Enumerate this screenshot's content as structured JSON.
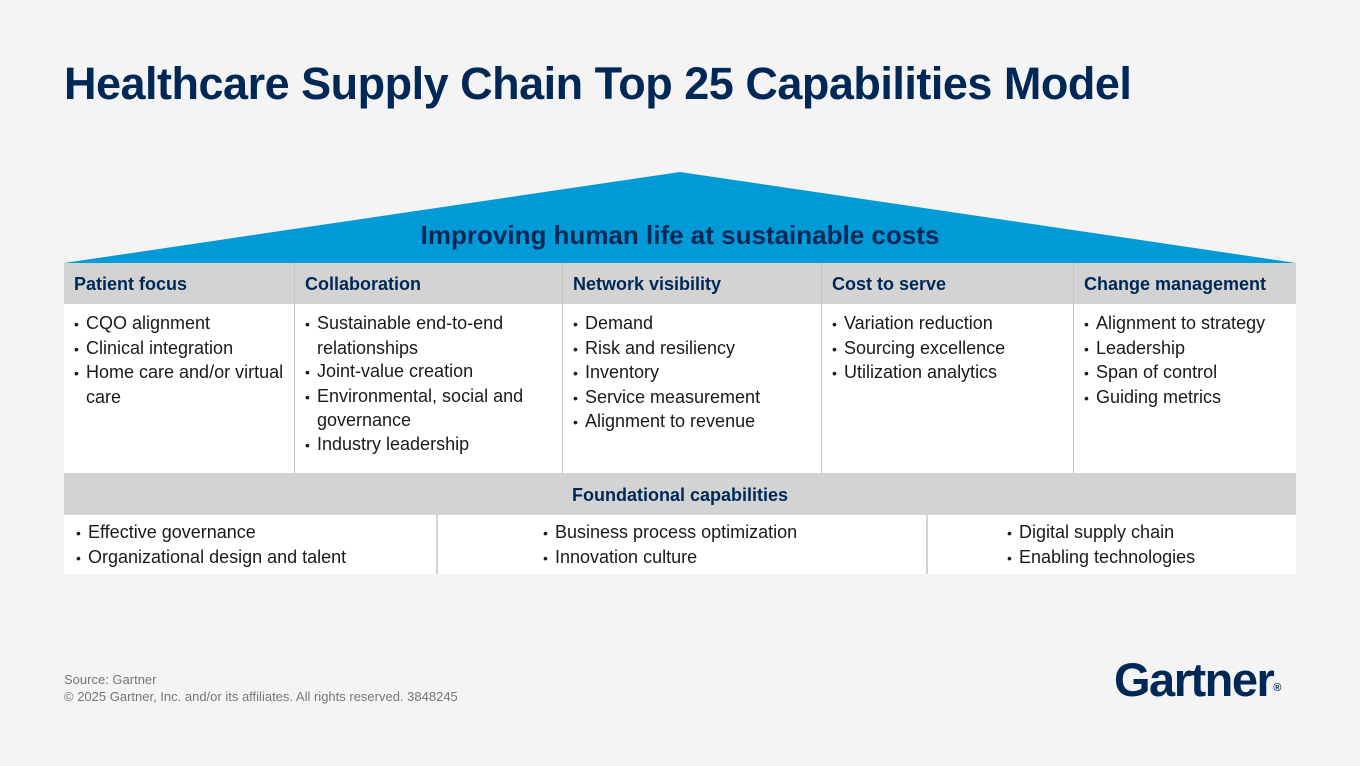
{
  "title": "Healthcare Supply Chain Top 25 Capabilities Model",
  "roof": {
    "text": "Improving human life at sustainable costs",
    "color": "#009ad7"
  },
  "pillars": [
    {
      "heading": "Patient focus",
      "items": [
        "CQO alignment",
        "Clinical integration",
        "Home care and/or virtual care"
      ]
    },
    {
      "heading": "Collaboration",
      "items": [
        "Sustainable end-to-end relationships",
        "Joint-value creation",
        "Environmental, social and governance",
        "Industry leadership"
      ]
    },
    {
      "heading": "Network visibility",
      "items": [
        "Demand",
        "Risk and resiliency",
        "Inventory",
        "Service measurement",
        "Alignment to revenue"
      ]
    },
    {
      "heading": "Cost to serve",
      "items": [
        "Variation reduction",
        "Sourcing excellence",
        "Utilization analytics"
      ]
    },
    {
      "heading": "Change management",
      "items": [
        "Alignment to strategy",
        "Leadership",
        "Span of control",
        "Guiding metrics"
      ]
    }
  ],
  "foundation": {
    "heading": "Foundational capabilities",
    "groups": [
      [
        "Effective governance",
        "Organizational design and talent"
      ],
      [
        "Business process optimization",
        "Innovation culture"
      ],
      [
        "Digital supply chain",
        "Enabling technologies"
      ]
    ]
  },
  "footer": {
    "source": "Source: Gartner",
    "copyright": "© 2025 Gartner, Inc. and/or its affiliates. All rights reserved. 3848245"
  },
  "logo": {
    "text": "Gartner",
    "mark": "®"
  },
  "colors": {
    "navy": "#002856",
    "blue": "#009ad7",
    "gray": "#d3d3d3"
  }
}
